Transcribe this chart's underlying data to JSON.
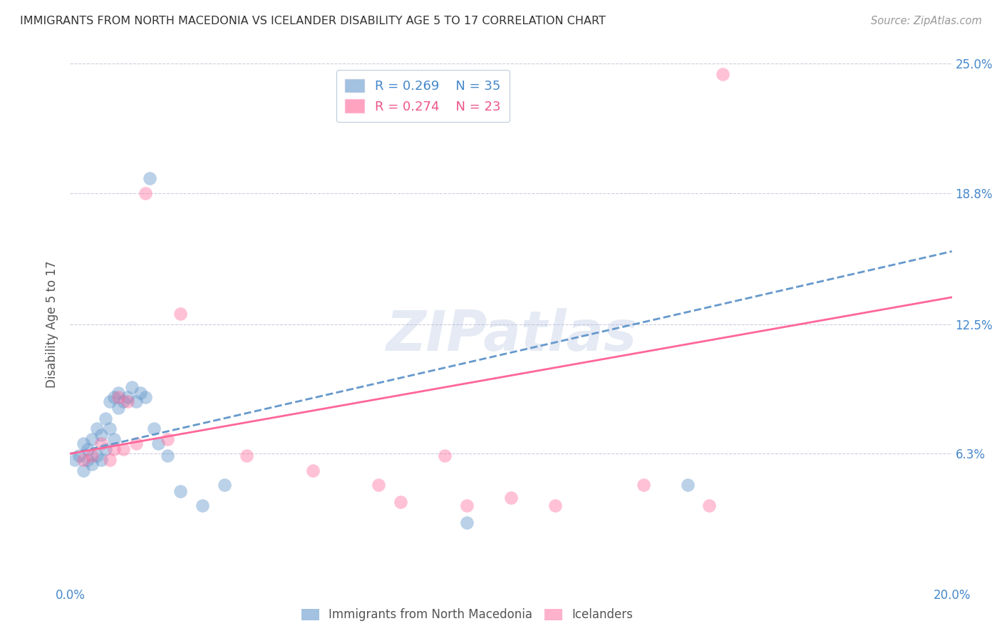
{
  "title": "IMMIGRANTS FROM NORTH MACEDONIA VS ICELANDER DISABILITY AGE 5 TO 17 CORRELATION CHART",
  "source": "Source: ZipAtlas.com",
  "ylabel": "Disability Age 5 to 17",
  "xlim": [
    0.0,
    0.2
  ],
  "ylim": [
    0.0,
    0.25
  ],
  "xticks": [
    0.0,
    0.04,
    0.08,
    0.12,
    0.16,
    0.2
  ],
  "xticklabels": [
    "0.0%",
    "",
    "",
    "",
    "",
    "20.0%"
  ],
  "yticks": [
    0.063,
    0.125,
    0.188,
    0.25
  ],
  "yticklabels": [
    "6.3%",
    "12.5%",
    "18.8%",
    "25.0%"
  ],
  "legend_r1": "R = 0.269",
  "legend_n1": "N = 35",
  "legend_r2": "R = 0.274",
  "legend_n2": "N = 23",
  "color_blue": "#6699CC",
  "color_pink": "#FF6699",
  "color_blue_text": "#4488CC",
  "color_pink_text": "#EE5588",
  "watermark": "ZIPatlas",
  "blue_scatter_x": [
    0.001,
    0.002,
    0.003,
    0.003,
    0.004,
    0.004,
    0.005,
    0.005,
    0.006,
    0.006,
    0.007,
    0.007,
    0.008,
    0.008,
    0.009,
    0.009,
    0.01,
    0.01,
    0.011,
    0.011,
    0.012,
    0.013,
    0.014,
    0.015,
    0.016,
    0.017,
    0.018,
    0.019,
    0.02,
    0.022,
    0.025,
    0.03,
    0.035,
    0.09,
    0.14
  ],
  "blue_scatter_y": [
    0.06,
    0.062,
    0.055,
    0.068,
    0.06,
    0.065,
    0.058,
    0.07,
    0.062,
    0.075,
    0.06,
    0.072,
    0.08,
    0.065,
    0.075,
    0.088,
    0.07,
    0.09,
    0.085,
    0.092,
    0.088,
    0.09,
    0.095,
    0.088,
    0.092,
    0.09,
    0.195,
    0.075,
    0.068,
    0.062,
    0.045,
    0.038,
    0.048,
    0.03,
    0.048
  ],
  "pink_scatter_x": [
    0.003,
    0.005,
    0.007,
    0.009,
    0.01,
    0.011,
    0.012,
    0.013,
    0.015,
    0.017,
    0.022,
    0.025,
    0.04,
    0.055,
    0.07,
    0.075,
    0.085,
    0.09,
    0.1,
    0.11,
    0.13,
    0.145,
    0.148
  ],
  "pink_scatter_y": [
    0.06,
    0.062,
    0.068,
    0.06,
    0.065,
    0.09,
    0.065,
    0.088,
    0.068,
    0.188,
    0.07,
    0.13,
    0.062,
    0.055,
    0.048,
    0.04,
    0.062,
    0.038,
    0.042,
    0.038,
    0.048,
    0.038,
    0.245
  ],
  "blue_line_x": [
    0.0,
    0.2
  ],
  "blue_line_y": [
    0.063,
    0.16
  ],
  "pink_line_x": [
    0.0,
    0.2
  ],
  "pink_line_y": [
    0.063,
    0.138
  ],
  "grid_color": "#CCCCDD",
  "background_color": "#FFFFFF"
}
